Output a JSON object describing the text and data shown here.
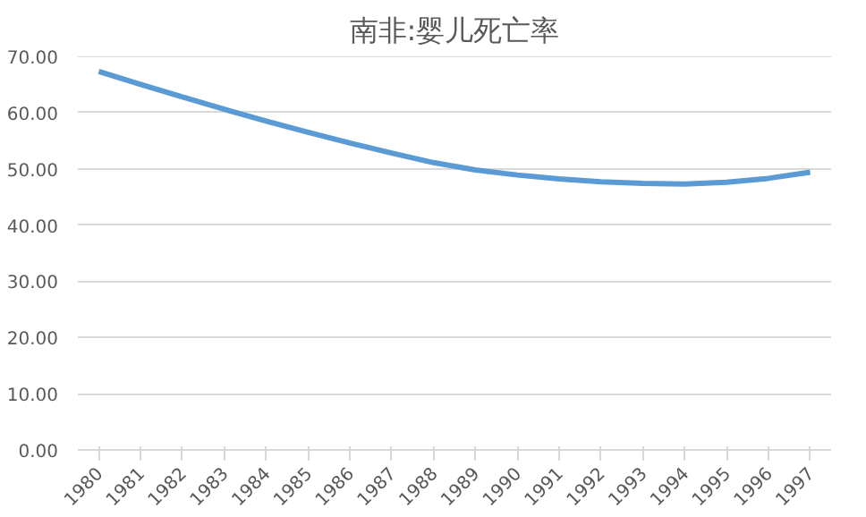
{
  "chart_data": {
    "type": "line",
    "title": "南非:婴儿死亡率",
    "categories": [
      "1980",
      "1981",
      "1982",
      "1983",
      "1984",
      "1985",
      "1986",
      "1987",
      "1988",
      "1989",
      "1990",
      "1991",
      "1992",
      "1993",
      "1994",
      "1995",
      "1996",
      "1997"
    ],
    "series": [
      {
        "color": "#5b9bd5",
        "values": [
          67.3,
          65.0,
          62.8,
          60.6,
          58.5,
          56.5,
          54.6,
          52.8,
          51.1,
          49.8,
          48.9,
          48.2,
          47.7,
          47.4,
          47.3,
          47.6,
          48.3,
          49.4
        ]
      }
    ],
    "ylim": [
      0,
      70
    ],
    "yticks": [
      {
        "value": 0,
        "label": "0.00"
      },
      {
        "value": 10,
        "label": "10.00"
      },
      {
        "value": 20,
        "label": "20.00"
      },
      {
        "value": 30,
        "label": "30.00"
      },
      {
        "value": 40,
        "label": "40.00"
      },
      {
        "value": 50,
        "label": "50.00"
      },
      {
        "value": 60,
        "label": "60.00"
      },
      {
        "value": 70,
        "label": "70.00"
      }
    ],
    "grid": "y",
    "marker": "none",
    "line_style": "solid"
  }
}
